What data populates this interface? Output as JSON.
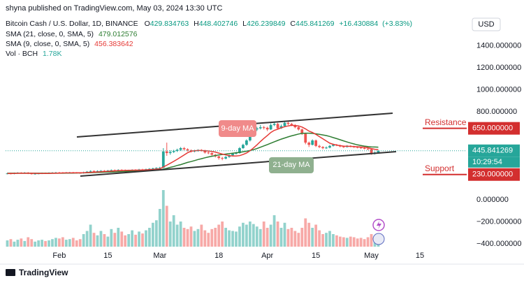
{
  "header": {
    "publisher": "shyna published on TradingView.com, May 03, 2024 13:30 UTC"
  },
  "chart_data": {
    "type": "candlestick",
    "title": "Bitcoin Cash / U.S. Dollar, 1D, BINANCE",
    "ohlc_labels": [
      "O",
      "H",
      "L",
      "C"
    ],
    "change": {
      "value": 16.430884,
      "label": "+16.430884"
    },
    "change_percent": {
      "value": 3.83,
      "label": "(+3.83%)"
    },
    "currency": "USD",
    "colors": {
      "up": "#26a69a",
      "down": "#ef5350"
    },
    "categories": [
      null,
      null,
      null,
      null,
      null,
      null,
      null,
      null,
      null,
      null,
      null,
      null,
      null,
      null,
      null,
      "Feb",
      null,
      null,
      null,
      null,
      null,
      null,
      null,
      null,
      null,
      null,
      null,
      null,
      null,
      "15",
      null,
      null,
      null,
      null,
      null,
      null,
      null,
      null,
      null,
      null,
      null,
      null,
      null,
      null,
      "Mar",
      null,
      null,
      null,
      null,
      null,
      null,
      null,
      null,
      null,
      null,
      null,
      null,
      null,
      null,
      null,
      null,
      "18",
      null,
      null,
      null,
      null,
      null,
      null,
      null,
      null,
      null,
      null,
      null,
      null,
      null,
      "Apr",
      null,
      null,
      null,
      null,
      null,
      null,
      null,
      null,
      null,
      null,
      null,
      null,
      null,
      "15",
      null,
      null,
      null,
      null,
      null,
      null,
      null,
      null,
      null,
      null,
      null,
      null,
      null,
      null,
      null,
      "May",
      null,
      null,
      null,
      null,
      null,
      null,
      null,
      null,
      null,
      null,
      null,
      null,
      null,
      "15",
      null,
      null,
      null,
      null,
      null,
      null,
      null,
      null,
      null,
      null,
      null,
      null,
      null
    ],
    "open": [
      238,
      240,
      238,
      242,
      245,
      243,
      246,
      240,
      236,
      238,
      240,
      242,
      241,
      244,
      246,
      248,
      246,
      245,
      247,
      248,
      246,
      245,
      244,
      250,
      256,
      262,
      258,
      262,
      264,
      262,
      266,
      270,
      268,
      272,
      270,
      266,
      268,
      272,
      270,
      276,
      274,
      278,
      282,
      286,
      290,
      292,
      440,
      425,
      435,
      445,
      455,
      470,
      460,
      450,
      440,
      446,
      452,
      448,
      430,
      425,
      410,
      395,
      380,
      375,
      390,
      405,
      420,
      425,
      470,
      500,
      540,
      600,
      640,
      650,
      660,
      655,
      640,
      680,
      690,
      650,
      670,
      700,
      690,
      680,
      660,
      640,
      600,
      520,
      500,
      540,
      490,
      480,
      470,
      475,
      490,
      500,
      495,
      485,
      480,
      490,
      485,
      480,
      475,
      470,
      465,
      460,
      420,
      429.834763,
      null,
      null,
      null,
      null,
      null,
      null,
      null,
      null,
      null,
      null,
      null,
      null,
      null,
      null,
      null,
      null,
      null,
      null,
      null,
      null,
      null,
      null,
      null,
      null,
      null
    ],
    "high": [
      246,
      246,
      248,
      251,
      251,
      252,
      252,
      246,
      244,
      246,
      248,
      248,
      250,
      252,
      254,
      254,
      252,
      253,
      254,
      254,
      252,
      251,
      256,
      262,
      268,
      268,
      268,
      270,
      270,
      272,
      276,
      276,
      278,
      278,
      276,
      274,
      278,
      278,
      282,
      282,
      284,
      288,
      292,
      296,
      300,
      470,
      520,
      450,
      455,
      465,
      480,
      480,
      468,
      458,
      455,
      460,
      460,
      455,
      438,
      432,
      418,
      400,
      390,
      398,
      412,
      428,
      435,
      480,
      510,
      550,
      615,
      655,
      665,
      680,
      672,
      665,
      695,
      705,
      700,
      685,
      712,
      710,
      700,
      688,
      668,
      648,
      610,
      530,
      550,
      548,
      500,
      488,
      485,
      500,
      510,
      508,
      502,
      492,
      498,
      496,
      492,
      488,
      482,
      478,
      472,
      466,
      438,
      448.402746,
      null,
      null,
      null,
      null,
      null,
      null,
      null,
      null,
      null,
      null,
      null,
      null,
      null,
      null,
      null,
      null,
      null,
      null,
      null,
      null,
      null,
      null,
      null,
      null,
      null
    ],
    "low": [
      232,
      232,
      232,
      236,
      237,
      237,
      234,
      230,
      230,
      232,
      234,
      235,
      235,
      238,
      240,
      240,
      239,
      239,
      241,
      240,
      239,
      238,
      238,
      244,
      250,
      252,
      252,
      256,
      256,
      256,
      260,
      262,
      262,
      264,
      260,
      260,
      262,
      264,
      264,
      268,
      268,
      272,
      276,
      280,
      284,
      288,
      400,
      410,
      425,
      435,
      445,
      450,
      440,
      430,
      432,
      438,
      440,
      420,
      415,
      400,
      385,
      365,
      360,
      368,
      382,
      398,
      412,
      420,
      462,
      492,
      530,
      590,
      625,
      640,
      640,
      625,
      635,
      670,
      640,
      645,
      660,
      680,
      670,
      650,
      630,
      590,
      505,
      480,
      495,
      480,
      470,
      460,
      462,
      468,
      484,
      488,
      478,
      472,
      475,
      478,
      472,
      468,
      462,
      458,
      452,
      410,
      412,
      426.239849,
      null,
      null,
      null,
      null,
      null,
      null,
      null,
      null,
      null,
      null,
      null,
      null,
      null,
      null,
      null,
      null,
      null,
      null,
      null,
      null,
      null,
      null,
      null,
      null,
      null
    ],
    "close": [
      240,
      238,
      242,
      245,
      243,
      246,
      240,
      236,
      238,
      240,
      242,
      241,
      244,
      246,
      248,
      246,
      245,
      247,
      248,
      246,
      245,
      244,
      250,
      256,
      262,
      258,
      262,
      264,
      262,
      266,
      270,
      268,
      272,
      270,
      266,
      268,
      272,
      270,
      276,
      274,
      278,
      282,
      286,
      290,
      292,
      440,
      425,
      435,
      445,
      455,
      470,
      460,
      450,
      440,
      446,
      452,
      448,
      430,
      425,
      410,
      395,
      380,
      375,
      390,
      405,
      420,
      425,
      470,
      500,
      540,
      600,
      640,
      650,
      660,
      655,
      640,
      680,
      690,
      650,
      670,
      700,
      690,
      680,
      660,
      640,
      600,
      520,
      500,
      540,
      490,
      480,
      470,
      475,
      490,
      500,
      495,
      485,
      480,
      490,
      485,
      480,
      475,
      470,
      465,
      460,
      420,
      430,
      445.841269,
      null,
      null,
      null,
      null,
      null,
      null,
      null,
      null,
      null,
      null,
      null,
      null,
      null,
      null,
      null,
      null,
      null,
      null,
      null,
      null,
      null,
      null,
      null,
      null,
      null
    ],
    "series": [
      {
        "name": "SMA (21, close, 0, SMA, 5)",
        "color": "#2e7d32",
        "values": [
          242,
          242,
          242,
          242,
          242,
          242,
          242,
          242,
          242,
          242,
          242,
          242,
          242,
          242,
          242,
          242,
          242,
          243,
          243,
          243,
          244,
          244,
          245,
          246,
          247,
          248,
          249,
          250,
          251,
          252,
          253,
          254,
          256,
          257,
          258,
          259,
          260,
          261,
          262,
          264,
          265,
          266,
          268,
          270,
          271,
          279,
          286,
          295,
          303,
          312,
          320,
          330,
          340,
          348,
          357,
          366,
          374,
          382,
          390,
          396,
          402,
          408,
          412,
          416,
          420,
          424,
          428,
          432,
          436,
          442,
          448,
          456,
          466,
          478,
          490,
          502,
          515,
          528,
          540,
          552,
          562,
          572,
          582,
          590,
          598,
          604,
          606,
          606,
          604,
          600,
          596,
          590,
          584,
          576,
          566,
          556,
          546,
          536,
          526,
          516,
          508,
          500,
          494,
          488,
          484,
          481,
          480,
          479.012576,
          null,
          null,
          null,
          null,
          null,
          null,
          null,
          null,
          null,
          null,
          null,
          null,
          null,
          null,
          null,
          null,
          null,
          null,
          null,
          null,
          null,
          null,
          null,
          null,
          null
        ]
      },
      {
        "name": "SMA (9, close, 0, SMA, 5)",
        "color": "#e53935",
        "values": [
          240,
          240,
          240,
          241,
          241,
          241,
          241,
          241,
          241,
          240,
          240,
          240,
          240,
          241,
          242,
          243,
          244,
          245,
          245,
          245,
          246,
          246,
          246,
          248,
          250,
          251,
          253,
          255,
          257,
          259,
          261,
          263,
          265,
          266,
          267,
          268,
          269,
          270,
          270,
          271,
          272,
          274,
          276,
          279,
          281,
          298,
          315,
          332,
          350,
          368,
          388,
          408,
          428,
          442,
          446,
          448,
          448,
          446,
          444,
          440,
          434,
          425,
          416,
          408,
          402,
          398,
          398,
          402,
          412,
          426,
          446,
          472,
          500,
          530,
          558,
          585,
          612,
          632,
          642,
          655,
          665,
          672,
          678,
          675,
          672,
          662,
          645,
          625,
          612,
          595,
          575,
          555,
          535,
          515,
          505,
          498,
          492,
          488,
          487,
          486,
          484,
          482,
          480,
          478,
          474,
          466,
          460,
          456.383642,
          null,
          null,
          null,
          null,
          null,
          null,
          null,
          null,
          null,
          null,
          null,
          null,
          null,
          null,
          null,
          null,
          null,
          null,
          null,
          null,
          null,
          null,
          null,
          null,
          null
        ]
      }
    ],
    "volume": {
      "name": "Vol · BCH",
      "last_value_label": "1.78K",
      "values": [
        1,
        1.2,
        0.8,
        1.1,
        1.3,
        0.9,
        1.5,
        1.2,
        0.8,
        1,
        1.1,
        0.9,
        1,
        1.2,
        1.4,
        1.3,
        1.5,
        1.1,
        1.2,
        1.4,
        1,
        1.2,
        2,
        2.5,
        3.5,
        2.2,
        1.8,
        2.5,
        2,
        1.6,
        2.8,
        2.2,
        3,
        2.4,
        1.8,
        2,
        2.6,
        1.9,
        2.4,
        2.1,
        2.6,
        3,
        3.8,
        4.2,
        6,
        9,
        6.5,
        4,
        5,
        3.5,
        4,
        3,
        2.8,
        3.2,
        2.5,
        2.8,
        3.5,
        2.6,
        2.2,
        2.8,
        3,
        3.5,
        4,
        3,
        2.6,
        2.5,
        2.4,
        3.2,
        3.8,
        3.5,
        4,
        3.6,
        3.2,
        2.8,
        4,
        3,
        3.5,
        5,
        4,
        3,
        3.8,
        2.8,
        3,
        2.5,
        2.2,
        3,
        4.5,
        3.8,
        3,
        3.5,
        2.6,
        2,
        2.2,
        2.5,
        2,
        1.8,
        1.6,
        1.5,
        1.4,
        1.6,
        1.5,
        1.3,
        1.4,
        1.2,
        1.5,
        2,
        1.6,
        1.78,
        null,
        null,
        null,
        null,
        null,
        null,
        null,
        null,
        null,
        null,
        null,
        null,
        null,
        null,
        null,
        null,
        null,
        null,
        null,
        null,
        null,
        null,
        null,
        null,
        null
      ]
    },
    "ylim": [
      -585,
      1690
    ],
    "yticks": [
      {
        "value": 1400,
        "label": "1400.000000"
      },
      {
        "value": 1200,
        "label": "1200.000000"
      },
      {
        "value": 1000,
        "label": "1000.000000"
      },
      {
        "value": 800,
        "label": "800.000000"
      },
      {
        "value": 0,
        "label": "0.000000"
      },
      {
        "value": -200,
        "label": "−200.000000"
      },
      {
        "value": -400,
        "label": "−400.000000"
      }
    ],
    "grid": false,
    "price_label_time": "10:29:54",
    "levels": [
      {
        "name": "Resistance",
        "value": 650,
        "label": "650.000000",
        "color": "#d32f2f"
      },
      {
        "name": "Support",
        "value": 230,
        "label": "230.000000",
        "color": "#d32f2f"
      }
    ],
    "annotations": [
      {
        "text": "9-day MA",
        "color": "#f08a8a"
      },
      {
        "text": "21-day MA",
        "color": "#8fb08f"
      }
    ]
  },
  "footer": {
    "brand": "TradingView"
  }
}
